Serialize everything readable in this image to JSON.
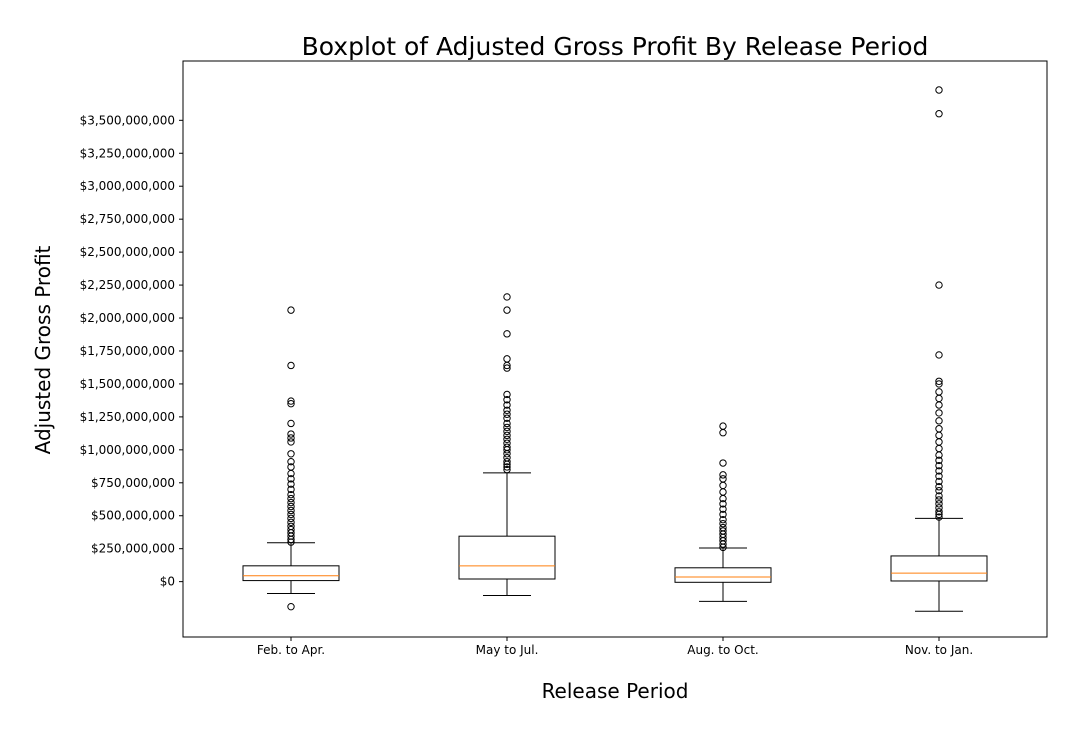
{
  "chart_data": {
    "type": "boxplot",
    "title": "Boxplot of Adjusted Gross Profit By Release Period",
    "xlabel": "Release Period",
    "ylabel": "Adjusted Gross Profit",
    "ylim": [
      -420000000,
      3950000000
    ],
    "yticks": [
      0,
      250000000,
      500000000,
      750000000,
      1000000000,
      1250000000,
      1500000000,
      1750000000,
      2000000000,
      2250000000,
      2500000000,
      2750000000,
      3000000000,
      3250000000,
      3500000000
    ],
    "ytick_labels": [
      "$0",
      "$250,000,000",
      "$500,000,000",
      "$750,000,000",
      "$1,000,000,000",
      "$1,250,000,000",
      "$1,500,000,000",
      "$1,750,000,000",
      "$2,000,000,000",
      "$2,250,000,000",
      "$2,500,000,000",
      "$2,750,000,000",
      "$3,000,000,000",
      "$3,250,000,000",
      "$3,500,000,000"
    ],
    "grid": false,
    "median_color": "#ff7f0e",
    "categories": [
      "Feb. to Apr.",
      "May to Jul.",
      "Aug. to Oct.",
      "Nov. to Jan."
    ],
    "boxes": [
      {
        "whisker_low": -90000000,
        "q1": 8000000,
        "median": 45000000,
        "q3": 120000000,
        "whisker_high": 295000000,
        "outliers": [
          -190000000,
          300000000,
          320000000,
          345000000,
          370000000,
          395000000,
          420000000,
          450000000,
          480000000,
          510000000,
          540000000,
          570000000,
          600000000,
          630000000,
          660000000,
          700000000,
          740000000,
          780000000,
          820000000,
          870000000,
          910000000,
          970000000,
          1060000000,
          1090000000,
          1120000000,
          1200000000,
          1350000000,
          1370000000,
          1640000000,
          2060000000
        ]
      },
      {
        "whisker_low": -105000000,
        "q1": 20000000,
        "median": 120000000,
        "q3": 345000000,
        "whisker_high": 825000000,
        "outliers": [
          850000000,
          870000000,
          890000000,
          910000000,
          940000000,
          970000000,
          1000000000,
          1020000000,
          1050000000,
          1080000000,
          1110000000,
          1140000000,
          1170000000,
          1200000000,
          1240000000,
          1270000000,
          1300000000,
          1340000000,
          1380000000,
          1420000000,
          1620000000,
          1640000000,
          1690000000,
          1880000000,
          2060000000,
          2160000000
        ]
      },
      {
        "whisker_low": -150000000,
        "q1": -5000000,
        "median": 35000000,
        "q3": 105000000,
        "whisker_high": 255000000,
        "outliers": [
          260000000,
          285000000,
          310000000,
          335000000,
          360000000,
          385000000,
          410000000,
          440000000,
          470000000,
          510000000,
          550000000,
          590000000,
          630000000,
          680000000,
          730000000,
          780000000,
          810000000,
          900000000,
          1130000000,
          1180000000
        ]
      },
      {
        "whisker_low": -225000000,
        "q1": 5000000,
        "median": 65000000,
        "q3": 195000000,
        "whisker_high": 480000000,
        "outliers": [
          490000000,
          510000000,
          530000000,
          560000000,
          590000000,
          620000000,
          650000000,
          690000000,
          720000000,
          760000000,
          800000000,
          840000000,
          880000000,
          920000000,
          960000000,
          1010000000,
          1060000000,
          1110000000,
          1160000000,
          1220000000,
          1280000000,
          1340000000,
          1390000000,
          1440000000,
          1500000000,
          1520000000,
          1720000000,
          2250000000,
          3550000000,
          3730000000
        ]
      }
    ]
  }
}
